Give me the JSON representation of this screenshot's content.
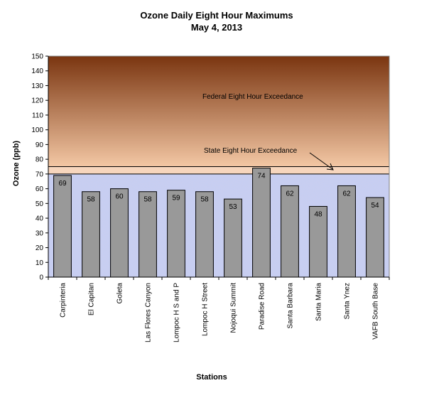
{
  "chart_data": {
    "type": "bar",
    "title": "Ozone Daily Eight Hour Maximums",
    "subtitle": "May 4, 2013",
    "xlabel": "Stations",
    "ylabel": "Ozone (ppb)",
    "ylim": [
      0,
      150
    ],
    "yticks": [
      0,
      10,
      20,
      30,
      40,
      50,
      60,
      70,
      80,
      90,
      100,
      110,
      120,
      130,
      140,
      150
    ],
    "categories": [
      "Carpinteria",
      "El Capitan",
      "Goleta",
      "Las Flores Canyon",
      "Lompoc H S and P",
      "Lompoc H Street",
      "Nojoqui Summit",
      "Paradise Road",
      "Santa Barbara",
      "Santa Maria",
      "Santa Ynez",
      "VAFB South Base"
    ],
    "values": [
      69,
      58,
      60,
      58,
      59,
      58,
      53,
      74,
      62,
      48,
      62,
      54
    ],
    "thresholds": {
      "state": 70,
      "federal": 75
    },
    "annotations": {
      "federal": "Federal Eight Hour Exceedance",
      "state": "State Eight Hour Exceedance"
    },
    "colors": {
      "bar": "#999999",
      "federal_top": "#7a3510",
      "federal_bottom": "#f3c7a4",
      "state_band": "#f7d6bd",
      "normal_band": "#c9cfee"
    }
  }
}
